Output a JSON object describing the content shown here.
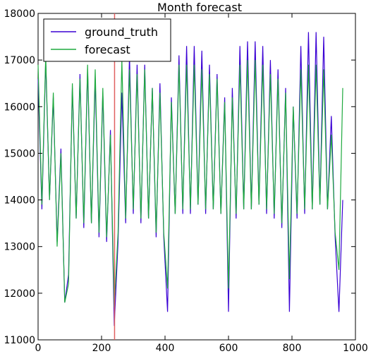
{
  "chart_data": {
    "type": "line",
    "title": "Month forecast",
    "xlabel": "",
    "ylabel": "",
    "xlim": [
      0,
      1000
    ],
    "ylim": [
      11000,
      18000
    ],
    "x_ticks": [
      0,
      200,
      400,
      600,
      800,
      1000
    ],
    "y_ticks": [
      11000,
      12000,
      13000,
      14000,
      15000,
      16000,
      17000,
      18000
    ],
    "x_tick_labels": [
      "0",
      "200",
      "400",
      "600",
      "800",
      "1000"
    ],
    "y_tick_labels": [
      "11000",
      "12000",
      "13000",
      "14000",
      "15000",
      "16000",
      "17000",
      "18000"
    ],
    "grid": false,
    "legend_position": "top-left",
    "vline": {
      "x": 241,
      "color": "#e06060"
    },
    "series": [
      {
        "name": "ground_truth",
        "color": "#3a00d4",
        "x": [
          0,
          12,
          24,
          36,
          48,
          60,
          72,
          84,
          96,
          108,
          120,
          132,
          144,
          156,
          168,
          180,
          192,
          204,
          216,
          228,
          240,
          252,
          264,
          276,
          288,
          300,
          312,
          324,
          336,
          348,
          360,
          372,
          384,
          396,
          408,
          420,
          432,
          444,
          456,
          468,
          480,
          492,
          504,
          516,
          528,
          540,
          552,
          564,
          576,
          588,
          600,
          612,
          624,
          636,
          648,
          660,
          672,
          684,
          696,
          708,
          720,
          732,
          744,
          756,
          768,
          780,
          792,
          804,
          816,
          828,
          840,
          852,
          864,
          876,
          888,
          900,
          912,
          924,
          936,
          948,
          960
        ],
        "y": [
          16600,
          13800,
          17000,
          14000,
          16200,
          13100,
          15100,
          11800,
          12400,
          16400,
          13600,
          16700,
          13400,
          16800,
          13500,
          16600,
          13200,
          16300,
          13100,
          15500,
          11300,
          13100,
          16300,
          13500,
          17100,
          13700,
          16900,
          13500,
          16900,
          13600,
          16400,
          13200,
          16500,
          13200,
          11600,
          16200,
          13700,
          17100,
          13700,
          17300,
          13700,
          17300,
          13900,
          17200,
          13700,
          16900,
          13800,
          16700,
          13700,
          16200,
          11600,
          16400,
          13600,
          17300,
          13800,
          17400,
          13800,
          17400,
          13900,
          17300,
          13700,
          17000,
          13600,
          16800,
          13400,
          16400,
          11600,
          16000,
          13600,
          17300,
          13700,
          17600,
          13800,
          17600,
          13900,
          17500,
          13800,
          15800,
          13200,
          11600,
          14000
        ]
      },
      {
        "name": "forecast",
        "color": "#1faa3f",
        "x": [
          0,
          12,
          24,
          36,
          48,
          60,
          72,
          84,
          96,
          108,
          120,
          132,
          144,
          156,
          168,
          180,
          192,
          204,
          216,
          228,
          240,
          252,
          264,
          276,
          288,
          300,
          312,
          324,
          336,
          348,
          360,
          372,
          384,
          396,
          408,
          420,
          432,
          444,
          456,
          468,
          480,
          492,
          504,
          516,
          528,
          540,
          552,
          564,
          576,
          588,
          600,
          612,
          624,
          636,
          648,
          660,
          672,
          684,
          696,
          708,
          720,
          732,
          744,
          756,
          768,
          780,
          792,
          804,
          816,
          828,
          840,
          852,
          864,
          876,
          888,
          900,
          912,
          924,
          936,
          948,
          960
        ],
        "y": [
          16900,
          13900,
          17100,
          14000,
          16300,
          13000,
          15000,
          11800,
          12200,
          16500,
          13600,
          16600,
          13500,
          16900,
          13500,
          16800,
          13300,
          16400,
          13200,
          15400,
          11700,
          13300,
          17000,
          13600,
          16800,
          13800,
          16700,
          13600,
          16800,
          13600,
          16400,
          13300,
          16300,
          13300,
          12100,
          16100,
          13700,
          16900,
          13800,
          16900,
          13800,
          16900,
          13900,
          16800,
          13800,
          16700,
          13800,
          16600,
          13700,
          16100,
          12100,
          16200,
          13700,
          16900,
          13800,
          17000,
          13800,
          17000,
          13900,
          16900,
          13800,
          16700,
          13700,
          16600,
          13500,
          16300,
          12300,
          16000,
          13700,
          16800,
          13800,
          16900,
          13800,
          16900,
          13900,
          16800,
          13800,
          15400,
          13300,
          12500,
          16400
        ]
      }
    ]
  }
}
